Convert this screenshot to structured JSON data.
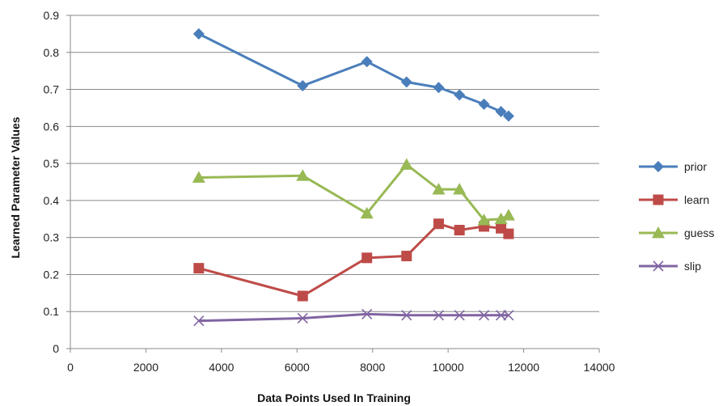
{
  "chart_data": {
    "type": "line",
    "title": "",
    "xlabel": "Data Points Used In Training",
    "ylabel": "Learned Parameter Values",
    "xlim": [
      0,
      14000
    ],
    "ylim": [
      0,
      0.9
    ],
    "xticks": [
      "0",
      "2000",
      "4000",
      "6000",
      "8000",
      "10000",
      "12000",
      "14000"
    ],
    "yticks": [
      "0",
      "0.1",
      "0.2",
      "0.3",
      "0.4",
      "0.5",
      "0.6",
      "0.7",
      "0.8",
      "0.9"
    ],
    "grid": "horizontal",
    "legend_position": "right",
    "x": [
      3400,
      6150,
      7850,
      8900,
      9750,
      10300,
      10950,
      11400,
      11600
    ],
    "series": [
      {
        "name": "prior",
        "color": "#4a7ebb",
        "marker": "diamond",
        "values": [
          0.85,
          0.71,
          0.775,
          0.72,
          0.705,
          0.685,
          0.66,
          0.64,
          0.628
        ]
      },
      {
        "name": "learn",
        "color": "#be4b48",
        "marker": "square",
        "values": [
          0.217,
          0.142,
          0.245,
          0.25,
          0.337,
          0.32,
          0.33,
          0.325,
          0.31
        ]
      },
      {
        "name": "guess",
        "color": "#98b954",
        "marker": "triangle",
        "values": [
          0.462,
          0.467,
          0.365,
          0.497,
          0.43,
          0.43,
          0.347,
          0.35,
          0.36
        ]
      },
      {
        "name": "slip",
        "color": "#8064a2",
        "marker": "x",
        "values": [
          0.075,
          0.082,
          0.093,
          0.09,
          0.09,
          0.09,
          0.09,
          0.09,
          0.09
        ]
      }
    ]
  }
}
